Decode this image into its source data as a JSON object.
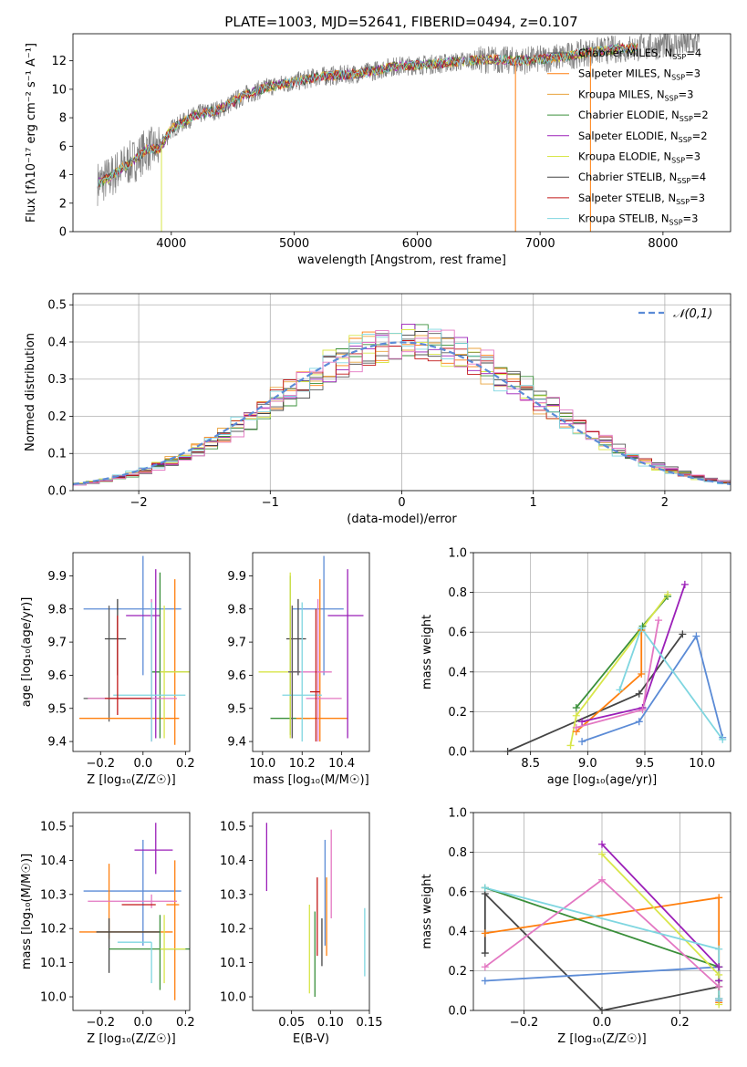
{
  "figure_title": "PLATE=1003, MJD=52641, FIBERID=0494, z=0.107",
  "colors": {
    "Chabrier MILES": "#5a5a5a",
    "Salpeter MILES": "#ff7f0e",
    "Kroupa MILES": "#e8a33c",
    "Chabrier ELODIE": "#3a8f3a",
    "Salpeter ELODIE": "#9b1fb8",
    "Kroupa ELODIE": "#d8e64a",
    "Chabrier STELIB": "#444444",
    "Salpeter STELIB": "#c21818",
    "Kroupa STELIB": "#7fd6e0",
    "pink": "#e377c2",
    "blue": "#5b8bd6",
    "normal": "#5b8bd6"
  },
  "chart_data": [
    {
      "id": "spectrum",
      "type": "line",
      "title": "PLATE=1003, MJD=52641, FIBERID=0494, z=0.107",
      "xlabel": "wavelength [Angstrom, rest frame]",
      "ylabel": "Flux [fλ10⁻¹⁷ erg cm⁻² s⁻¹ A⁻¹]",
      "xlim": [
        3200,
        8550
      ],
      "ylim": [
        0,
        13.9
      ],
      "xticks": [
        4000,
        5000,
        6000,
        7000,
        8000
      ],
      "yticks": [
        0,
        2,
        4,
        6,
        8,
        10,
        12
      ],
      "legend_position": "top-right",
      "legend": [
        "Chabrier MILES, NSSP=4",
        "Salpeter MILES, NSSP=3",
        "Kroupa MILES, NSSP=3",
        "Chabrier ELODIE, NSSP=2",
        "Salpeter ELODIE, NSSP=2",
        "Kroupa ELODIE, NSSP=3",
        "Chabrier STELIB, NSSP=4",
        "Salpeter STELIB, NSSP=3",
        "Kroupa STELIB, NSSP=3"
      ],
      "continuum": [
        [
          3400,
          3.4
        ],
        [
          3500,
          3.8
        ],
        [
          3600,
          4.5
        ],
        [
          3700,
          5.0
        ],
        [
          3800,
          5.8
        ],
        [
          3900,
          5.8
        ],
        [
          4000,
          7.2
        ],
        [
          4200,
          8.2
        ],
        [
          4400,
          8.6
        ],
        [
          4600,
          9.6
        ],
        [
          4800,
          10.2
        ],
        [
          5000,
          10.5
        ],
        [
          5200,
          10.9
        ],
        [
          5400,
          11.0
        ],
        [
          5600,
          11.2
        ],
        [
          5800,
          11.6
        ],
        [
          6000,
          11.7
        ],
        [
          6200,
          11.8
        ],
        [
          6400,
          12.0
        ],
        [
          6600,
          12.1
        ],
        [
          6800,
          12.0
        ],
        [
          7000,
          12.1
        ],
        [
          7200,
          12.3
        ],
        [
          7400,
          12.6
        ],
        [
          7600,
          12.8
        ],
        [
          7800,
          12.9
        ],
        [
          8000,
          13.1
        ],
        [
          8200,
          13.2
        ],
        [
          8300,
          13.3
        ]
      ]
    },
    {
      "id": "residuals",
      "type": "line",
      "xlabel": "(data-model)/error",
      "ylabel": "Normed distribution",
      "xlim": [
        -2.5,
        2.5
      ],
      "ylim": [
        0,
        0.53
      ],
      "xticks": [
        -2,
        -1,
        0,
        1,
        2
      ],
      "yticks": [
        0.0,
        0.1,
        0.2,
        0.3,
        0.4,
        0.5
      ],
      "grid": true,
      "legend_position": "top-right",
      "legend": [
        "𝒩(0,1)"
      ],
      "normal": {
        "mean": 0,
        "sigma": 1
      }
    },
    {
      "id": "age-vs-Z",
      "type": "scatter",
      "xlabel": "Z [log₁₀(Z/Z☉)]",
      "ylabel": "age  [log₁₀(age/yr)]",
      "xlim": [
        -0.33,
        0.22
      ],
      "ylim": [
        9.37,
        9.97
      ],
      "xticks": [
        -0.2,
        0.0,
        0.2
      ],
      "yticks": [
        9.4,
        9.5,
        9.6,
        9.7,
        9.8,
        9.9
      ],
      "points": [
        {
          "x": 0.0,
          "xerr": [
            0.28,
            0.18
          ],
          "y": 9.8,
          "yerr": [
            0.2,
            0.16
          ],
          "c": "blue"
        },
        {
          "x": -0.16,
          "xerr": [
            0.12,
            0.24
          ],
          "y": 9.53,
          "yerr": [
            0.07,
            0.28
          ],
          "c": "Chabrier MILES"
        },
        {
          "x": -0.12,
          "xerr": [
            0.06,
            0.04
          ],
          "y": 9.71,
          "yerr": [
            0.11,
            0.12
          ],
          "c": "Chabrier STELIB"
        },
        {
          "x": 0.15,
          "xerr": [
            0.45,
            0.02
          ],
          "y": 9.47,
          "yerr": [
            0.08,
            0.42
          ],
          "c": "Salpeter MILES"
        },
        {
          "x": 0.08,
          "xerr": [
            0.04,
            0.16
          ],
          "y": 9.61,
          "yerr": [
            0.2,
            0.3
          ],
          "c": "Chabrier ELODIE"
        },
        {
          "x": 0.06,
          "xerr": [
            0.14,
            0.02
          ],
          "y": 9.78,
          "yerr": [
            0.37,
            0.14
          ],
          "c": "Salpeter ELODIE"
        },
        {
          "x": 0.1,
          "xerr": [
            0.02,
            0.12
          ],
          "y": 9.61,
          "yerr": [
            0.2,
            0.2
          ],
          "c": "Kroupa ELODIE"
        },
        {
          "x": 0.04,
          "xerr": [
            0.3,
            0.12
          ],
          "y": 9.53,
          "yerr": [
            0.13,
            0.3
          ],
          "c": "pink"
        },
        {
          "x": 0.04,
          "xerr": [
            0.18,
            0.16
          ],
          "y": 9.54,
          "yerr": [
            0.14,
            0.28
          ],
          "c": "Kroupa STELIB"
        },
        {
          "x": -0.12,
          "xerr": [
            0.06,
            0.16
          ],
          "y": 9.53,
          "yerr": [
            0.05,
            0.25
          ],
          "c": "Salpeter STELIB"
        }
      ]
    },
    {
      "id": "age-vs-mass",
      "type": "scatter",
      "xlabel": "mass [log₁₀(M/M☉)]",
      "ylabel": "",
      "xlim": [
        9.95,
        10.54
      ],
      "ylim": [
        9.37,
        9.97
      ],
      "xticks": [
        10.0,
        10.2,
        10.4
      ],
      "yticks": [
        9.4,
        9.5,
        9.6,
        9.7,
        9.8,
        9.9
      ],
      "points": [
        {
          "x": 10.31,
          "xerr": [
            0.16,
            0.1
          ],
          "y": 9.8,
          "yerr": [
            0.2,
            0.16
          ],
          "c": "blue"
        },
        {
          "x": 10.14,
          "xerr": [
            0.1,
            0.1
          ],
          "y": 9.47,
          "yerr": [
            0.05,
            0.43
          ],
          "c": "Chabrier ELODIE"
        },
        {
          "x": 10.18,
          "xerr": [
            0.06,
            0.04
          ],
          "y": 9.71,
          "yerr": [
            0.11,
            0.12
          ],
          "c": "Chabrier STELIB"
        },
        {
          "x": 10.29,
          "xerr": [
            0.12,
            0.14
          ],
          "y": 9.47,
          "yerr": [
            0.07,
            0.42
          ],
          "c": "Salpeter MILES"
        },
        {
          "x": 10.14,
          "xerr": [
            0.16,
            0.02
          ],
          "y": 9.61,
          "yerr": [
            0.2,
            0.3
          ],
          "c": "Kroupa ELODIE"
        },
        {
          "x": 10.43,
          "xerr": [
            0.1,
            0.08
          ],
          "y": 9.78,
          "yerr": [
            0.37,
            0.14
          ],
          "c": "Salpeter ELODIE"
        },
        {
          "x": 10.15,
          "xerr": [
            0.02,
            0.2
          ],
          "y": 9.61,
          "yerr": [
            0.2,
            0.2
          ],
          "c": "pink"
        },
        {
          "x": 10.28,
          "xerr": [
            0.06,
            0.12
          ],
          "y": 9.53,
          "yerr": [
            0.13,
            0.3
          ],
          "c": "pink"
        },
        {
          "x": 10.2,
          "xerr": [
            0.1,
            0.1
          ],
          "y": 9.54,
          "yerr": [
            0.14,
            0.28
          ],
          "c": "Kroupa STELIB"
        },
        {
          "x": 10.27,
          "xerr": [
            0.03,
            0.02
          ],
          "y": 9.55,
          "yerr": [
            0.15,
            0.25
          ],
          "c": "Salpeter STELIB"
        },
        {
          "x": 10.15,
          "xerr": [
            0.02,
            0.04
          ],
          "y": 9.61,
          "yerr": [
            0.2,
            0.2
          ],
          "c": "Chabrier MILES"
        }
      ]
    },
    {
      "id": "mass-weight-vs-age",
      "type": "line",
      "xlabel": "age  [log₁₀(age/yr)]",
      "ylabel": "mass weight",
      "xlim": [
        8.0,
        10.25
      ],
      "ylim": [
        0.0,
        1.0
      ],
      "xticks": [
        8.5,
        9.0,
        9.5,
        10.0
      ],
      "yticks": [
        0.0,
        0.2,
        0.4,
        0.6,
        0.8,
        1.0
      ],
      "grid": true,
      "series": [
        {
          "c": "Chabrier STELIB",
          "x": [
            8.3,
            9.45,
            9.83
          ],
          "y": [
            0.0,
            0.29,
            0.59
          ]
        },
        {
          "c": "blue",
          "x": [
            8.95,
            9.45,
            9.95,
            10.18
          ],
          "y": [
            0.05,
            0.15,
            0.58,
            0.07
          ]
        },
        {
          "c": "Salpeter MILES",
          "x": [
            8.9,
            9.47,
            9.47
          ],
          "y": [
            0.1,
            0.39,
            0.61
          ]
        },
        {
          "c": "Chabrier ELODIE",
          "x": [
            8.9,
            9.48,
            9.7
          ],
          "y": [
            0.22,
            0.63,
            0.78
          ]
        },
        {
          "c": "Salpeter ELODIE",
          "x": [
            8.95,
            9.48,
            9.85
          ],
          "y": [
            0.15,
            0.22,
            0.84
          ]
        },
        {
          "c": "Kroupa ELODIE",
          "x": [
            8.85,
            8.9,
            9.7
          ],
          "y": [
            0.03,
            0.18,
            0.79
          ]
        },
        {
          "c": "pink",
          "x": [
            8.9,
            9.48,
            9.62
          ],
          "y": [
            0.12,
            0.21,
            0.66
          ]
        },
        {
          "c": "Kroupa STELIB",
          "x": [
            9.28,
            9.47,
            10.18
          ],
          "y": [
            0.31,
            0.62,
            0.06
          ]
        }
      ]
    },
    {
      "id": "mass-vs-Z",
      "type": "scatter",
      "xlabel": "Z [log₁₀(Z/Z☉)]",
      "ylabel": "mass [log₁₀(M/M☉)]",
      "xlim": [
        -0.33,
        0.22
      ],
      "ylim": [
        9.96,
        10.54
      ],
      "xticks": [
        -0.2,
        0.0,
        0.2
      ],
      "yticks": [
        10.0,
        10.1,
        10.2,
        10.3,
        10.4,
        10.5
      ],
      "points": [
        {
          "x": 0.0,
          "xerr": [
            0.28,
            0.18
          ],
          "y": 10.31,
          "yerr": [
            0.16,
            0.15
          ],
          "c": "blue"
        },
        {
          "x": 0.06,
          "xerr": [
            0.1,
            0.08
          ],
          "y": 10.43,
          "yerr": [
            0.07,
            0.08
          ],
          "c": "Salpeter ELODIE"
        },
        {
          "x": -0.16,
          "xerr": [
            0.14,
            0.3
          ],
          "y": 10.19,
          "yerr": [
            0.02,
            0.2
          ],
          "c": "Salpeter MILES"
        },
        {
          "x": -0.16,
          "xerr": [
            0.06,
            0.24
          ],
          "y": 10.19,
          "yerr": [
            0.12,
            0.04
          ],
          "c": "Chabrier STELIB"
        },
        {
          "x": 0.15,
          "xerr": [
            0.04,
            0.02
          ],
          "y": 10.27,
          "yerr": [
            0.28,
            0.13
          ],
          "c": "Salpeter MILES"
        },
        {
          "x": 0.08,
          "xerr": [
            0.24,
            0.14
          ],
          "y": 10.14,
          "yerr": [
            0.12,
            0.1
          ],
          "c": "Chabrier ELODIE"
        },
        {
          "x": 0.1,
          "xerr": [
            0.02,
            0.1
          ],
          "y": 10.14,
          "yerr": [
            0.1,
            0.1
          ],
          "c": "Kroupa ELODIE"
        },
        {
          "x": 0.04,
          "xerr": [
            0.3,
            0.12
          ],
          "y": 10.28,
          "yerr": [
            0.02,
            0.02
          ],
          "c": "pink"
        },
        {
          "x": 0.04,
          "xerr": [
            0.16,
            0.0
          ],
          "y": 10.16,
          "yerr": [
            0.12,
            0.0
          ],
          "c": "Kroupa STELIB"
        },
        {
          "x": 0.0,
          "xerr": [
            0.1,
            0.06
          ],
          "y": 10.27,
          "yerr": [
            0.0,
            0.0
          ],
          "c": "Salpeter STELIB"
        }
      ]
    },
    {
      "id": "mass-vs-EBV",
      "type": "scatter",
      "xlabel": "E(B-V)",
      "ylabel": "",
      "xlim": [
        0.0,
        0.15
      ],
      "ylim": [
        9.96,
        10.54
      ],
      "xticks": [
        0.05,
        0.1,
        0.15
      ],
      "yticks": [
        10.0,
        10.1,
        10.2,
        10.3,
        10.4,
        10.5
      ],
      "points": [
        {
          "x": 0.018,
          "y": 10.41,
          "yerr": [
            0.1,
            0.1
          ],
          "c": "Salpeter ELODIE"
        },
        {
          "x": 0.073,
          "y": 10.14,
          "yerr": [
            0.13,
            0.13
          ],
          "c": "Kroupa ELODIE"
        },
        {
          "x": 0.08,
          "y": 10.15,
          "yerr": [
            0.15,
            0.1
          ],
          "c": "Chabrier ELODIE"
        },
        {
          "x": 0.083,
          "y": 10.23,
          "yerr": [
            0.11,
            0.12
          ],
          "c": "Salpeter STELIB"
        },
        {
          "x": 0.089,
          "y": 10.19,
          "yerr": [
            0.1,
            0.04
          ],
          "c": "Chabrier STELIB"
        },
        {
          "x": 0.093,
          "y": 10.31,
          "yerr": [
            0.16,
            0.15
          ],
          "c": "blue"
        },
        {
          "x": 0.095,
          "y": 10.22,
          "yerr": [
            0.1,
            0.13
          ],
          "c": "Salpeter MILES"
        },
        {
          "x": 0.101,
          "y": 10.33,
          "yerr": [
            0.1,
            0.16
          ],
          "c": "pink"
        },
        {
          "x": 0.144,
          "y": 10.16,
          "yerr": [
            0.1,
            0.1
          ],
          "c": "Kroupa STELIB"
        }
      ]
    },
    {
      "id": "mass-weight-vs-Z",
      "type": "line",
      "xlabel": "Z [log₁₀(Z/Z☉)]",
      "ylabel": "mass weight",
      "xlim": [
        -0.33,
        0.33
      ],
      "ylim": [
        0.0,
        1.0
      ],
      "xticks": [
        -0.2,
        0.0,
        0.2
      ],
      "yticks": [
        0.0,
        0.2,
        0.4,
        0.6,
        0.8,
        1.0
      ],
      "grid": true,
      "series": [
        {
          "c": "Chabrier STELIB",
          "x": [
            -0.3,
            -0.3,
            0.0,
            0.3,
            0.3
          ],
          "y": [
            0.29,
            0.59,
            0.0,
            0.12,
            0.06
          ]
        },
        {
          "c": "blue",
          "x": [
            -0.3,
            0.3,
            0.3
          ],
          "y": [
            0.15,
            0.22,
            0.05
          ]
        },
        {
          "c": "Salpeter MILES",
          "x": [
            -0.3,
            0.3,
            0.3
          ],
          "y": [
            0.39,
            0.57,
            0.04
          ]
        },
        {
          "c": "Chabrier ELODIE",
          "x": [
            -0.3,
            0.3,
            0.3
          ],
          "y": [
            0.62,
            0.22,
            0.15
          ]
        },
        {
          "c": "Salpeter ELODIE",
          "x": [
            0.0,
            0.3,
            0.3
          ],
          "y": [
            0.84,
            0.22,
            0.15
          ]
        },
        {
          "c": "Kroupa ELODIE",
          "x": [
            0.0,
            0.3,
            0.3
          ],
          "y": [
            0.79,
            0.18,
            0.03
          ]
        },
        {
          "c": "pink",
          "x": [
            -0.3,
            0.0,
            0.3
          ],
          "y": [
            0.22,
            0.66,
            0.12
          ]
        },
        {
          "c": "Kroupa STELIB",
          "x": [
            -0.3,
            0.3,
            0.3
          ],
          "y": [
            0.62,
            0.31,
            0.06
          ]
        }
      ]
    }
  ]
}
